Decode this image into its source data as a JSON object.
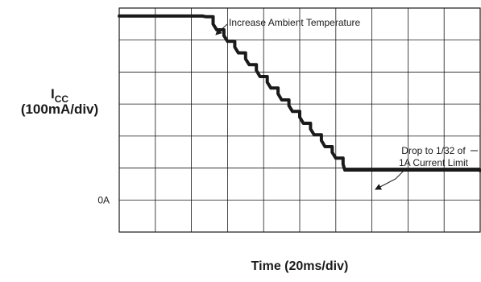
{
  "chart_data": {
    "type": "line",
    "title": "",
    "ylabel": {
      "main": "I",
      "subscript": "CC",
      "units": "(100mA/div)"
    },
    "xlabel": "Time (20ms/div)",
    "xlim": [
      0,
      200
    ],
    "ylim": [
      -100,
      600
    ],
    "x_divisions": 10,
    "y_divisions": 7,
    "grid": true,
    "y_tick_labels": [
      {
        "value": 0,
        "label": "0A"
      }
    ],
    "annotations": [
      {
        "text": [
          "Increase Ambient Temperature"
        ],
        "x": 48,
        "y": 575
      },
      {
        "text": [
          "Drop to 1/32 of",
          "1A Current Limit"
        ],
        "x": 124,
        "y": 31
      }
    ],
    "series": [
      {
        "line_color": "#1a1a1a",
        "x": [
          0,
          46,
          48,
          52,
          54,
          58,
          60,
          64,
          66,
          70,
          72,
          76,
          78,
          82,
          84,
          88,
          90,
          94,
          96,
          100,
          102,
          106,
          108,
          112,
          114,
          118,
          120,
          124,
          125,
          200
        ],
        "y": [
          575,
          575,
          573,
          550,
          532,
          514,
          496,
          478,
          460,
          441,
          423,
          405,
          386,
          368,
          350,
          332,
          313,
          295,
          277,
          259,
          240,
          222,
          204,
          186,
          167,
          149,
          131,
          112,
          94,
          92
        ]
      }
    ]
  }
}
